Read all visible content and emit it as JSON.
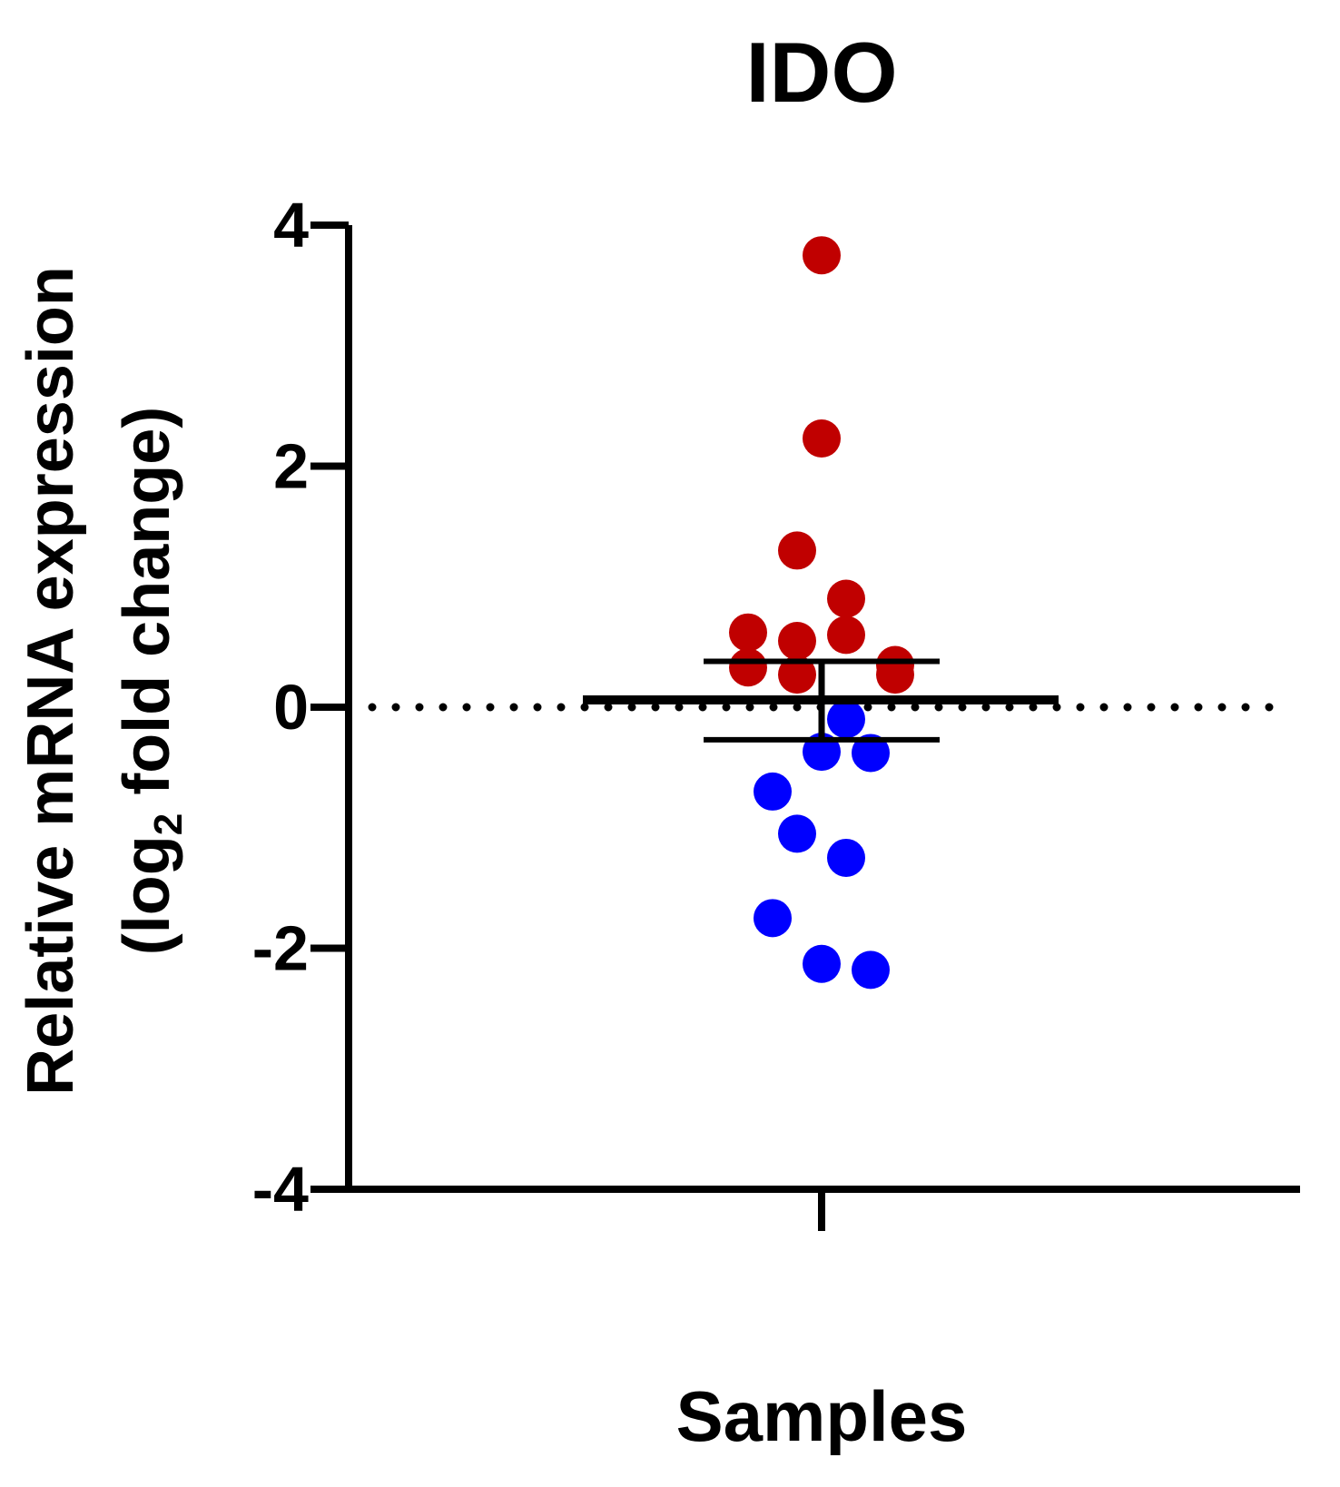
{
  "chart_data": {
    "type": "scatter",
    "title": "IDO",
    "xlabel": "Samples",
    "ylabel_line1": "Relative mRNA expression",
    "ylabel_line2_prefix": "(log",
    "ylabel_line2_subscript": "2",
    "ylabel_line2_suffix": " fold change)",
    "x_categories": [
      ""
    ],
    "ylim": [
      -4,
      4
    ],
    "yticks": [
      {
        "value": 4,
        "label": "4"
      },
      {
        "value": 2,
        "label": "2"
      },
      {
        "value": 0,
        "label": "0"
      },
      {
        "value": -2,
        "label": "-2"
      },
      {
        "value": -4,
        "label": "-4"
      }
    ],
    "reference_line": {
      "y": 0,
      "style": "dotted"
    },
    "summary": {
      "mean": 0.06,
      "error_upper": 0.38,
      "error_lower": -0.27
    },
    "series": [
      {
        "color": "#c00000",
        "points": [
          {
            "offset": 0,
            "y": 3.75
          },
          {
            "offset": 0,
            "y": 2.23
          },
          {
            "offset": -1,
            "y": 1.3
          },
          {
            "offset": 1,
            "y": 0.9
          },
          {
            "offset": -3,
            "y": 0.62
          },
          {
            "offset": -1,
            "y": 0.55
          },
          {
            "offset": 1,
            "y": 0.6
          },
          {
            "offset": -3,
            "y": 0.33
          },
          {
            "offset": -1,
            "y": 0.27
          },
          {
            "offset": 3,
            "y": 0.35
          },
          {
            "offset": 3,
            "y": 0.27
          }
        ]
      },
      {
        "color": "#0000ff",
        "points": [
          {
            "offset": 1,
            "y": -0.1
          },
          {
            "offset": 0,
            "y": -0.37
          },
          {
            "offset": 2,
            "y": -0.38
          },
          {
            "offset": -2,
            "y": -0.7
          },
          {
            "offset": -1,
            "y": -1.05
          },
          {
            "offset": 1,
            "y": -1.25
          },
          {
            "offset": -2,
            "y": -1.75
          },
          {
            "offset": 0,
            "y": -2.13
          },
          {
            "offset": 2,
            "y": -2.18
          }
        ]
      }
    ]
  }
}
